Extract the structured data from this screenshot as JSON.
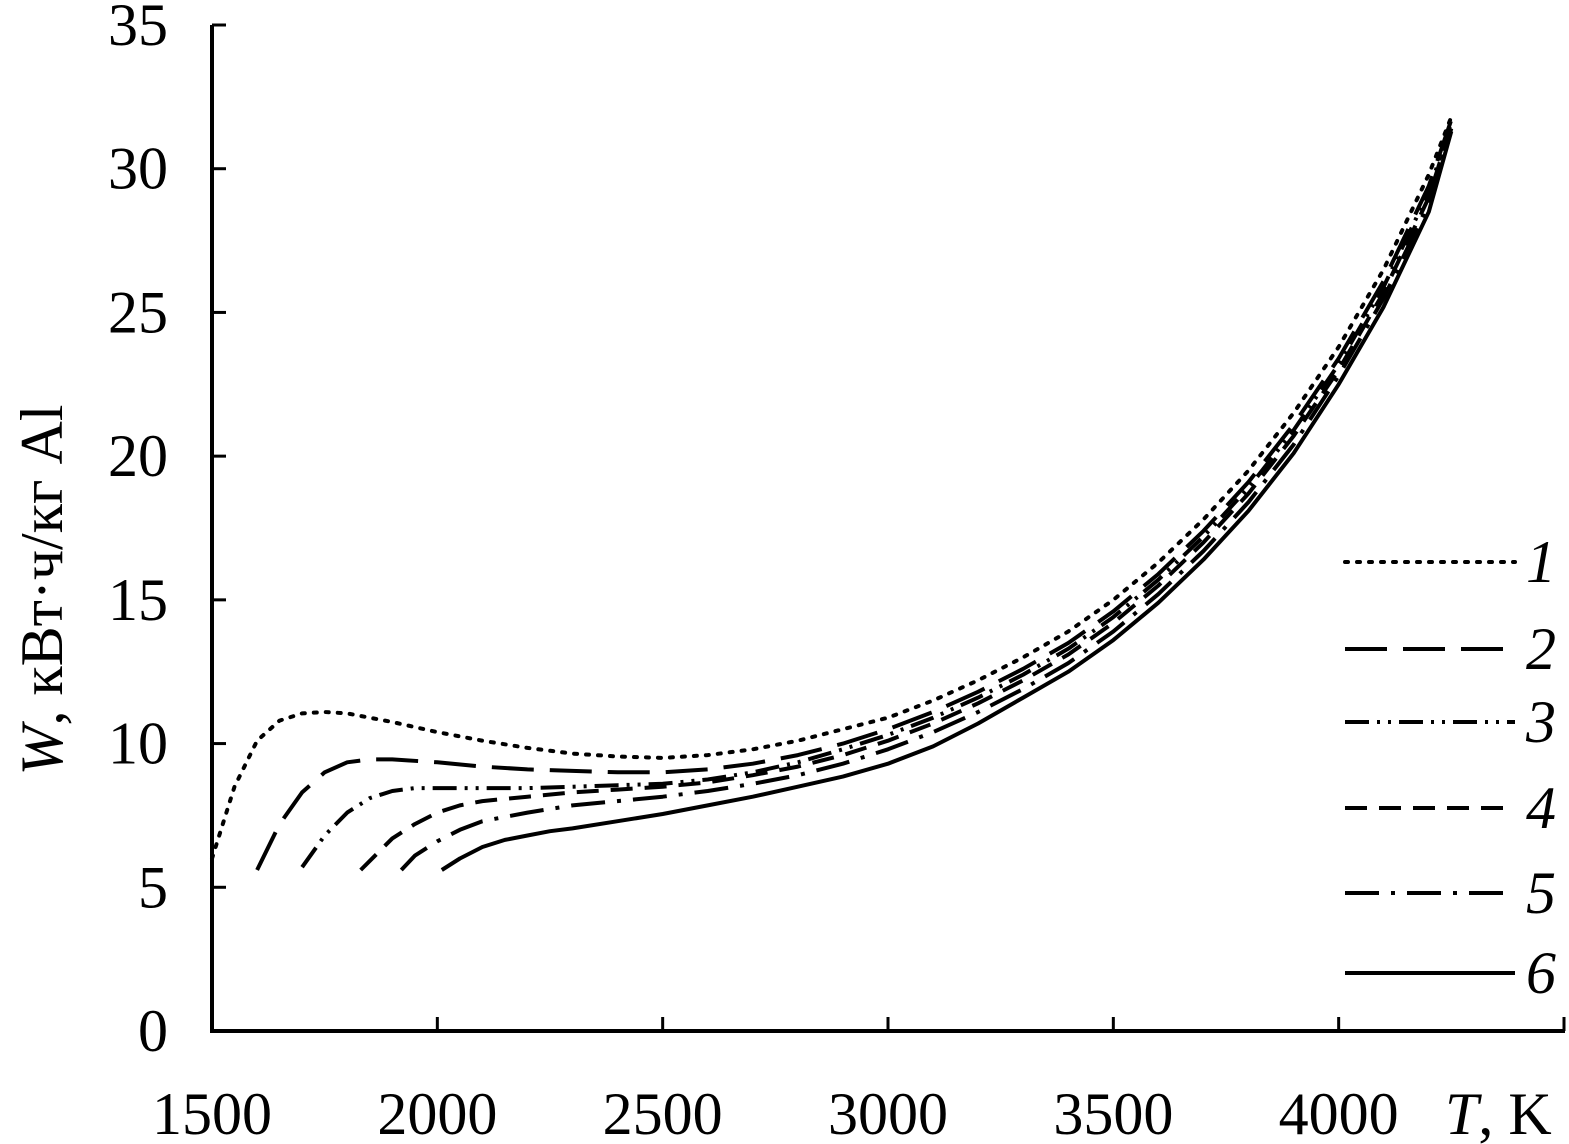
{
  "chart_data": {
    "type": "line",
    "title": "",
    "xlabel": {
      "var": "T",
      "unit": ", K"
    },
    "ylabel": {
      "var": "W",
      "unit": ", кВт·ч/кг Al"
    },
    "xlim": [
      1500,
      4500
    ],
    "ylim": [
      0,
      35
    ],
    "x_ticks": [
      "1500",
      "2000",
      "2500",
      "3000",
      "3500",
      "4000"
    ],
    "y_ticks": [
      "0",
      "5",
      "10",
      "15",
      "20",
      "25",
      "30",
      "35"
    ],
    "grid": false,
    "legend_position": "right",
    "series": [
      {
        "name": "1",
        "style": "dotted",
        "x": [
          1500,
          1550,
          1600,
          1650,
          1700,
          1750,
          1800,
          1900,
          2000,
          2100,
          2200,
          2300,
          2400,
          2500,
          2600,
          2700,
          2800,
          2900,
          3000,
          3100,
          3200,
          3300,
          3400,
          3500,
          3600,
          3700,
          3800,
          3900,
          4000,
          4100,
          4200,
          4250
        ],
        "y": [
          6.0,
          8.5,
          10.1,
          10.8,
          11.05,
          11.1,
          11.05,
          10.75,
          10.4,
          10.1,
          9.85,
          9.65,
          9.55,
          9.5,
          9.6,
          9.8,
          10.1,
          10.5,
          10.9,
          11.5,
          12.2,
          13.0,
          13.9,
          15.0,
          16.3,
          17.8,
          19.5,
          21.5,
          23.8,
          26.5,
          29.8,
          31.8
        ]
      },
      {
        "name": "2",
        "style": "long-dash",
        "x": [
          1600,
          1650,
          1700,
          1750,
          1800,
          1850,
          1900,
          2000,
          2100,
          2200,
          2300,
          2400,
          2500,
          2600,
          2700,
          2800,
          2900,
          3000,
          3100,
          3200,
          3300,
          3400,
          3500,
          3600,
          3700,
          3800,
          3900,
          4000,
          4100,
          4200,
          4250
        ],
        "y": [
          5.6,
          7.2,
          8.3,
          9.0,
          9.35,
          9.45,
          9.45,
          9.35,
          9.2,
          9.1,
          9.05,
          9.0,
          9.0,
          9.1,
          9.3,
          9.6,
          10.0,
          10.5,
          11.1,
          11.8,
          12.6,
          13.5,
          14.6,
          15.9,
          17.4,
          19.1,
          21.1,
          23.4,
          26.1,
          29.4,
          31.7
        ]
      },
      {
        "name": "3",
        "style": "dash-dot-dot",
        "x": [
          1700,
          1750,
          1800,
          1850,
          1900,
          1950,
          2000,
          2100,
          2200,
          2300,
          2400,
          2500,
          2600,
          2700,
          2800,
          2900,
          3000,
          3100,
          3200,
          3300,
          3400,
          3500,
          3600,
          3700,
          3800,
          3900,
          4000,
          4100,
          4200,
          4250
        ],
        "y": [
          5.7,
          6.8,
          7.6,
          8.1,
          8.35,
          8.45,
          8.45,
          8.45,
          8.45,
          8.5,
          8.55,
          8.6,
          8.75,
          9.0,
          9.35,
          9.8,
          10.3,
          10.9,
          11.6,
          12.4,
          13.3,
          14.4,
          15.7,
          17.2,
          18.9,
          20.9,
          23.2,
          25.9,
          29.2,
          31.6
        ]
      },
      {
        "name": "4",
        "style": "dashed",
        "x": [
          1830,
          1900,
          1950,
          2000,
          2050,
          2100,
          2200,
          2300,
          2400,
          2500,
          2600,
          2700,
          2800,
          2900,
          3000,
          3100,
          3200,
          3300,
          3400,
          3500,
          3600,
          3700,
          3800,
          3900,
          4000,
          4100,
          4200,
          4250
        ],
        "y": [
          5.6,
          6.7,
          7.2,
          7.6,
          7.85,
          8.0,
          8.15,
          8.3,
          8.4,
          8.5,
          8.65,
          8.9,
          9.2,
          9.6,
          10.1,
          10.7,
          11.4,
          12.2,
          13.1,
          14.2,
          15.5,
          17.0,
          18.7,
          20.7,
          23.0,
          25.7,
          29.0,
          31.5
        ]
      },
      {
        "name": "5",
        "style": "dash-dot",
        "x": [
          1920,
          1950,
          2000,
          2050,
          2100,
          2150,
          2200,
          2300,
          2400,
          2500,
          2600,
          2700,
          2800,
          2900,
          3000,
          3100,
          3200,
          3300,
          3400,
          3500,
          3600,
          3700,
          3800,
          3900,
          4000,
          4100,
          4200,
          4250
        ],
        "y": [
          5.6,
          6.1,
          6.6,
          7.0,
          7.3,
          7.45,
          7.6,
          7.85,
          8.0,
          8.15,
          8.35,
          8.6,
          8.9,
          9.3,
          9.8,
          10.4,
          11.1,
          11.9,
          12.8,
          13.9,
          15.2,
          16.7,
          18.4,
          20.4,
          22.8,
          25.5,
          28.8,
          31.4
        ]
      },
      {
        "name": "6",
        "style": "solid",
        "x": [
          2010,
          2050,
          2100,
          2150,
          2200,
          2250,
          2300,
          2400,
          2500,
          2600,
          2700,
          2800,
          2900,
          3000,
          3100,
          3200,
          3300,
          3400,
          3500,
          3600,
          3700,
          3800,
          3900,
          4000,
          4100,
          4200,
          4250
        ],
        "y": [
          5.6,
          6.0,
          6.4,
          6.65,
          6.8,
          6.95,
          7.05,
          7.3,
          7.55,
          7.85,
          8.15,
          8.5,
          8.85,
          9.3,
          9.9,
          10.7,
          11.6,
          12.5,
          13.6,
          14.9,
          16.4,
          18.1,
          20.1,
          22.5,
          25.2,
          28.5,
          31.3
        ]
      }
    ]
  }
}
